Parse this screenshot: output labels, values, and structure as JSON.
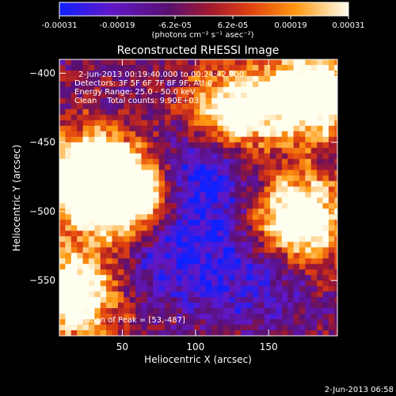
{
  "chart_data": {
    "type": "heatmap",
    "title": "Reconstructed RHESSI Image",
    "xlabel": "Heliocentric X (arcsec)",
    "ylabel": "Heliocentric Y (arcsec)",
    "xlim": [
      7,
      197
    ],
    "ylim": [
      -590,
      -390
    ],
    "x_ticks": [
      50,
      100,
      150
    ],
    "y_ticks": [
      -400,
      -450,
      -500,
      -550
    ],
    "colorbar": {
      "range": [
        -0.00031,
        0.00031
      ],
      "tick_labels": [
        "-0.00031",
        "-0.00019",
        "-6.2e-05",
        "6.2e-05",
        "0.00019",
        "0.00031"
      ],
      "units_label": "(photons cm⁻² s⁻¹ asec⁻²)",
      "colormap": "blue-purple-red-yellow-white"
    },
    "annotations": [
      "2-Jun-2013 00:19:40.000 to 00:24:42.000",
      "Detectors: 3F 5F 6F 7F 8F 9F, Att 0",
      "Energy Range: 25.0 - 50.0 keV",
      "Clean    Total counts: 9.90E+03"
    ],
    "peak_label": "Position of Peak = [53,-487]",
    "peak": {
      "x": 53,
      "y": -487
    },
    "bright_regions": [
      {
        "x": 53,
        "y": -487,
        "level": 1.0
      },
      {
        "x": 25,
        "y": -475,
        "level": 0.85
      },
      {
        "x": 180,
        "y": -415,
        "level": 0.9
      },
      {
        "x": 170,
        "y": -505,
        "level": 0.85
      },
      {
        "x": 125,
        "y": -430,
        "level": 0.6
      },
      {
        "x": 15,
        "y": -560,
        "level": 0.7
      }
    ],
    "dim_regions": [
      {
        "x": 105,
        "y": -470,
        "level": 0.0
      },
      {
        "x": 85,
        "y": -530,
        "level": 0.15
      },
      {
        "x": 140,
        "y": -545,
        "level": 0.2
      }
    ]
  },
  "footer_timestamp": "2-Jun-2013 06:58",
  "colors": {
    "background": "#000000",
    "foreground": "#ffffff"
  }
}
